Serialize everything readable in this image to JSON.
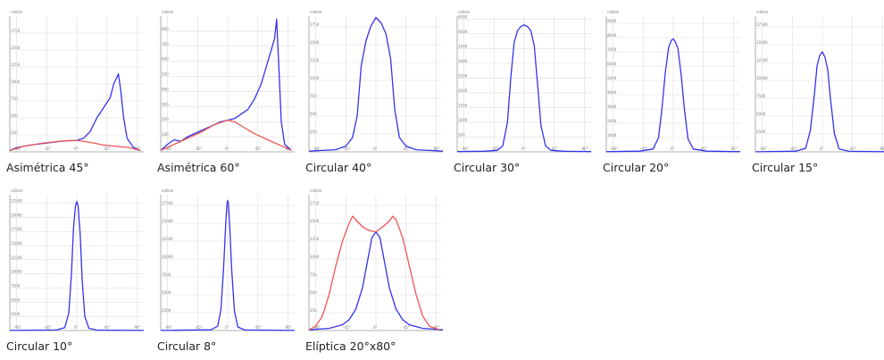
{
  "colors": {
    "series_a": "#3333ee",
    "series_b": "#ee5555",
    "grid": "#dddddd",
    "axis": "#999999"
  },
  "units_label": "cd/klm",
  "angle_ticks": [
    "-90°",
    "-45°",
    "0°",
    "45°",
    "90°"
  ],
  "chart_data": [
    {
      "type": "line",
      "caption": "Asimétrica 45°",
      "ymax": 2000,
      "yticks": [
        "250",
        "500",
        "750",
        "1000",
        "1250",
        "1500",
        "1750"
      ],
      "series": [
        {
          "color": "blue",
          "points": [
            [
              -100,
              20
            ],
            [
              -90,
              60
            ],
            [
              -70,
              100
            ],
            [
              -45,
              130
            ],
            [
              -20,
              160
            ],
            [
              0,
              170
            ],
            [
              10,
              200
            ],
            [
              20,
              300
            ],
            [
              30,
              500
            ],
            [
              40,
              650
            ],
            [
              50,
              800
            ],
            [
              55,
              1000
            ],
            [
              60,
              1100
            ],
            [
              62,
              1150
            ],
            [
              65,
              950
            ],
            [
              70,
              500
            ],
            [
              75,
              200
            ],
            [
              85,
              60
            ],
            [
              95,
              20
            ]
          ]
        },
        {
          "color": "red",
          "points": [
            [
              -100,
              20
            ],
            [
              -80,
              80
            ],
            [
              -50,
              130
            ],
            [
              -20,
              160
            ],
            [
              0,
              170
            ],
            [
              20,
              140
            ],
            [
              40,
              100
            ],
            [
              60,
              80
            ],
            [
              80,
              60
            ],
            [
              95,
              20
            ]
          ]
        }
      ]
    },
    {
      "type": "line",
      "caption": "Asimétrica 60°",
      "ymax": 900,
      "yticks": [
        "100",
        "200",
        "300",
        "400",
        "500",
        "600",
        "700",
        "800"
      ],
      "series": [
        {
          "color": "blue",
          "points": [
            [
              -100,
              10
            ],
            [
              -90,
              50
            ],
            [
              -80,
              80
            ],
            [
              -70,
              70
            ],
            [
              -60,
              100
            ],
            [
              -40,
              140
            ],
            [
              -20,
              180
            ],
            [
              -10,
              200
            ],
            [
              0,
              210
            ],
            [
              10,
              220
            ],
            [
              20,
              250
            ],
            [
              30,
              280
            ],
            [
              40,
              350
            ],
            [
              50,
              450
            ],
            [
              60,
              600
            ],
            [
              70,
              750
            ],
            [
              73,
              880
            ],
            [
              76,
              600
            ],
            [
              80,
              200
            ],
            [
              85,
              50
            ],
            [
              95,
              10
            ]
          ]
        },
        {
          "color": "red",
          "points": [
            [
              -100,
              10
            ],
            [
              -80,
              50
            ],
            [
              -60,
              90
            ],
            [
              -40,
              130
            ],
            [
              -20,
              180
            ],
            [
              0,
              210
            ],
            [
              10,
              200
            ],
            [
              25,
              160
            ],
            [
              40,
              120
            ],
            [
              60,
              80
            ],
            [
              80,
              40
            ],
            [
              95,
              10
            ]
          ]
        }
      ]
    },
    {
      "type": "line",
      "caption": "Circular 40°",
      "ymax": 1900,
      "yticks": [
        "250",
        "500",
        "750",
        "1000",
        "1250",
        "1500",
        "1750"
      ],
      "series": [
        {
          "color": "blue",
          "points": [
            [
              -100,
              10
            ],
            [
              -80,
              20
            ],
            [
              -60,
              30
            ],
            [
              -45,
              80
            ],
            [
              -35,
              200
            ],
            [
              -28,
              500
            ],
            [
              -22,
              1200
            ],
            [
              -15,
              1550
            ],
            [
              -8,
              1750
            ],
            [
              0,
              1880
            ],
            [
              8,
              1800
            ],
            [
              15,
              1650
            ],
            [
              22,
              1300
            ],
            [
              28,
              600
            ],
            [
              35,
              200
            ],
            [
              45,
              80
            ],
            [
              60,
              30
            ],
            [
              80,
              20
            ],
            [
              100,
              10
            ]
          ]
        }
      ]
    },
    {
      "type": "line",
      "caption": "Circular 30°",
      "ymax": 4600,
      "yticks": [
        "500",
        "1000",
        "1500",
        "2000",
        "2500",
        "3000",
        "3500",
        "4000",
        "4500"
      ],
      "series": [
        {
          "color": "blue",
          "points": [
            [
              -100,
              10
            ],
            [
              -60,
              20
            ],
            [
              -40,
              50
            ],
            [
              -32,
              200
            ],
            [
              -25,
              1000
            ],
            [
              -20,
              2500
            ],
            [
              -15,
              3700
            ],
            [
              -10,
              4100
            ],
            [
              -5,
              4250
            ],
            [
              0,
              4300
            ],
            [
              5,
              4250
            ],
            [
              10,
              4100
            ],
            [
              15,
              3600
            ],
            [
              20,
              2300
            ],
            [
              25,
              900
            ],
            [
              32,
              200
            ],
            [
              40,
              50
            ],
            [
              60,
              20
            ],
            [
              100,
              10
            ]
          ]
        }
      ]
    },
    {
      "type": "line",
      "caption": "Circular 20°",
      "ymax": 9500,
      "yticks": [
        "1000",
        "2000",
        "3000",
        "4000",
        "5000",
        "6000",
        "7000",
        "8000",
        "9000"
      ],
      "series": [
        {
          "color": "blue",
          "points": [
            [
              -100,
              10
            ],
            [
              -50,
              50
            ],
            [
              -30,
              200
            ],
            [
              -22,
              1000
            ],
            [
              -17,
              3000
            ],
            [
              -12,
              5500
            ],
            [
              -7,
              7300
            ],
            [
              -3,
              7800
            ],
            [
              0,
              7900
            ],
            [
              3,
              7700
            ],
            [
              7,
              7200
            ],
            [
              12,
              5300
            ],
            [
              17,
              2800
            ],
            [
              22,
              900
            ],
            [
              30,
              200
            ],
            [
              50,
              50
            ],
            [
              100,
              10
            ]
          ]
        }
      ]
    },
    {
      "type": "line",
      "caption": "Circular 15°",
      "ymax": 19000,
      "yticks": [
        "2500",
        "5000",
        "7500",
        "10000",
        "12500",
        "15000",
        "17500"
      ],
      "series": [
        {
          "color": "blue",
          "points": [
            [
              -100,
              10
            ],
            [
              -40,
              100
            ],
            [
              -25,
              500
            ],
            [
              -18,
              3000
            ],
            [
              -12,
              8000
            ],
            [
              -8,
              12000
            ],
            [
              -4,
              13500
            ],
            [
              0,
              14000
            ],
            [
              4,
              13200
            ],
            [
              8,
              11500
            ],
            [
              12,
              7500
            ],
            [
              18,
              2500
            ],
            [
              25,
              400
            ],
            [
              40,
              80
            ],
            [
              100,
              10
            ]
          ]
        }
      ]
    },
    {
      "type": "line",
      "caption": "Circular 10°",
      "ymax": 24000,
      "yticks": [
        "2500",
        "5000",
        "7500",
        "10000",
        "12500",
        "15000",
        "17500",
        "20000",
        "22500"
      ],
      "series": [
        {
          "color": "blue",
          "points": [
            [
              -100,
              10
            ],
            [
              -30,
              100
            ],
            [
              -18,
              500
            ],
            [
              -12,
              3000
            ],
            [
              -8,
              10000
            ],
            [
              -5,
              18000
            ],
            [
              -2,
              22000
            ],
            [
              0,
              22800
            ],
            [
              2,
              22000
            ],
            [
              5,
              17000
            ],
            [
              8,
              9000
            ],
            [
              12,
              2500
            ],
            [
              18,
              400
            ],
            [
              30,
              80
            ],
            [
              100,
              10
            ]
          ]
        }
      ]
    },
    {
      "type": "line",
      "caption": "Circular 8°",
      "ymax": 19000,
      "yticks": [
        "2500",
        "5000",
        "7500",
        "10000",
        "12500",
        "15000",
        "17500"
      ],
      "series": [
        {
          "color": "blue",
          "points": [
            [
              -100,
              10
            ],
            [
              -25,
              100
            ],
            [
              -15,
              600
            ],
            [
              -10,
              3000
            ],
            [
              -6,
              9000
            ],
            [
              -3,
              15000
            ],
            [
              -1,
              17800
            ],
            [
              0,
              18200
            ],
            [
              1,
              17800
            ],
            [
              3,
              14500
            ],
            [
              6,
              8500
            ],
            [
              10,
              2800
            ],
            [
              15,
              500
            ],
            [
              25,
              80
            ],
            [
              100,
              10
            ]
          ]
        }
      ]
    },
    {
      "type": "line",
      "caption": "Elíptica 20°x80°",
      "ymax": 1900,
      "yticks": [
        "250",
        "500",
        "750",
        "1000",
        "1250",
        "1500",
        "1750"
      ],
      "series": [
        {
          "color": "blue",
          "points": [
            [
              -100,
              10
            ],
            [
              -70,
              30
            ],
            [
              -50,
              80
            ],
            [
              -40,
              150
            ],
            [
              -30,
              300
            ],
            [
              -20,
              600
            ],
            [
              -12,
              1000
            ],
            [
              -6,
              1300
            ],
            [
              0,
              1380
            ],
            [
              6,
              1300
            ],
            [
              12,
              1000
            ],
            [
              20,
              600
            ],
            [
              30,
              300
            ],
            [
              40,
              150
            ],
            [
              50,
              80
            ],
            [
              70,
              30
            ],
            [
              100,
              10
            ]
          ]
        },
        {
          "color": "red",
          "points": [
            [
              -100,
              10
            ],
            [
              -90,
              60
            ],
            [
              -80,
              200
            ],
            [
              -70,
              500
            ],
            [
              -60,
              900
            ],
            [
              -50,
              1250
            ],
            [
              -40,
              1500
            ],
            [
              -35,
              1600
            ],
            [
              -30,
              1550
            ],
            [
              -20,
              1450
            ],
            [
              -10,
              1400
            ],
            [
              0,
              1380
            ],
            [
              10,
              1450
            ],
            [
              20,
              1530
            ],
            [
              25,
              1600
            ],
            [
              30,
              1550
            ],
            [
              40,
              1300
            ],
            [
              50,
              900
            ],
            [
              60,
              500
            ],
            [
              70,
              200
            ],
            [
              80,
              60
            ],
            [
              95,
              10
            ]
          ]
        }
      ]
    }
  ]
}
